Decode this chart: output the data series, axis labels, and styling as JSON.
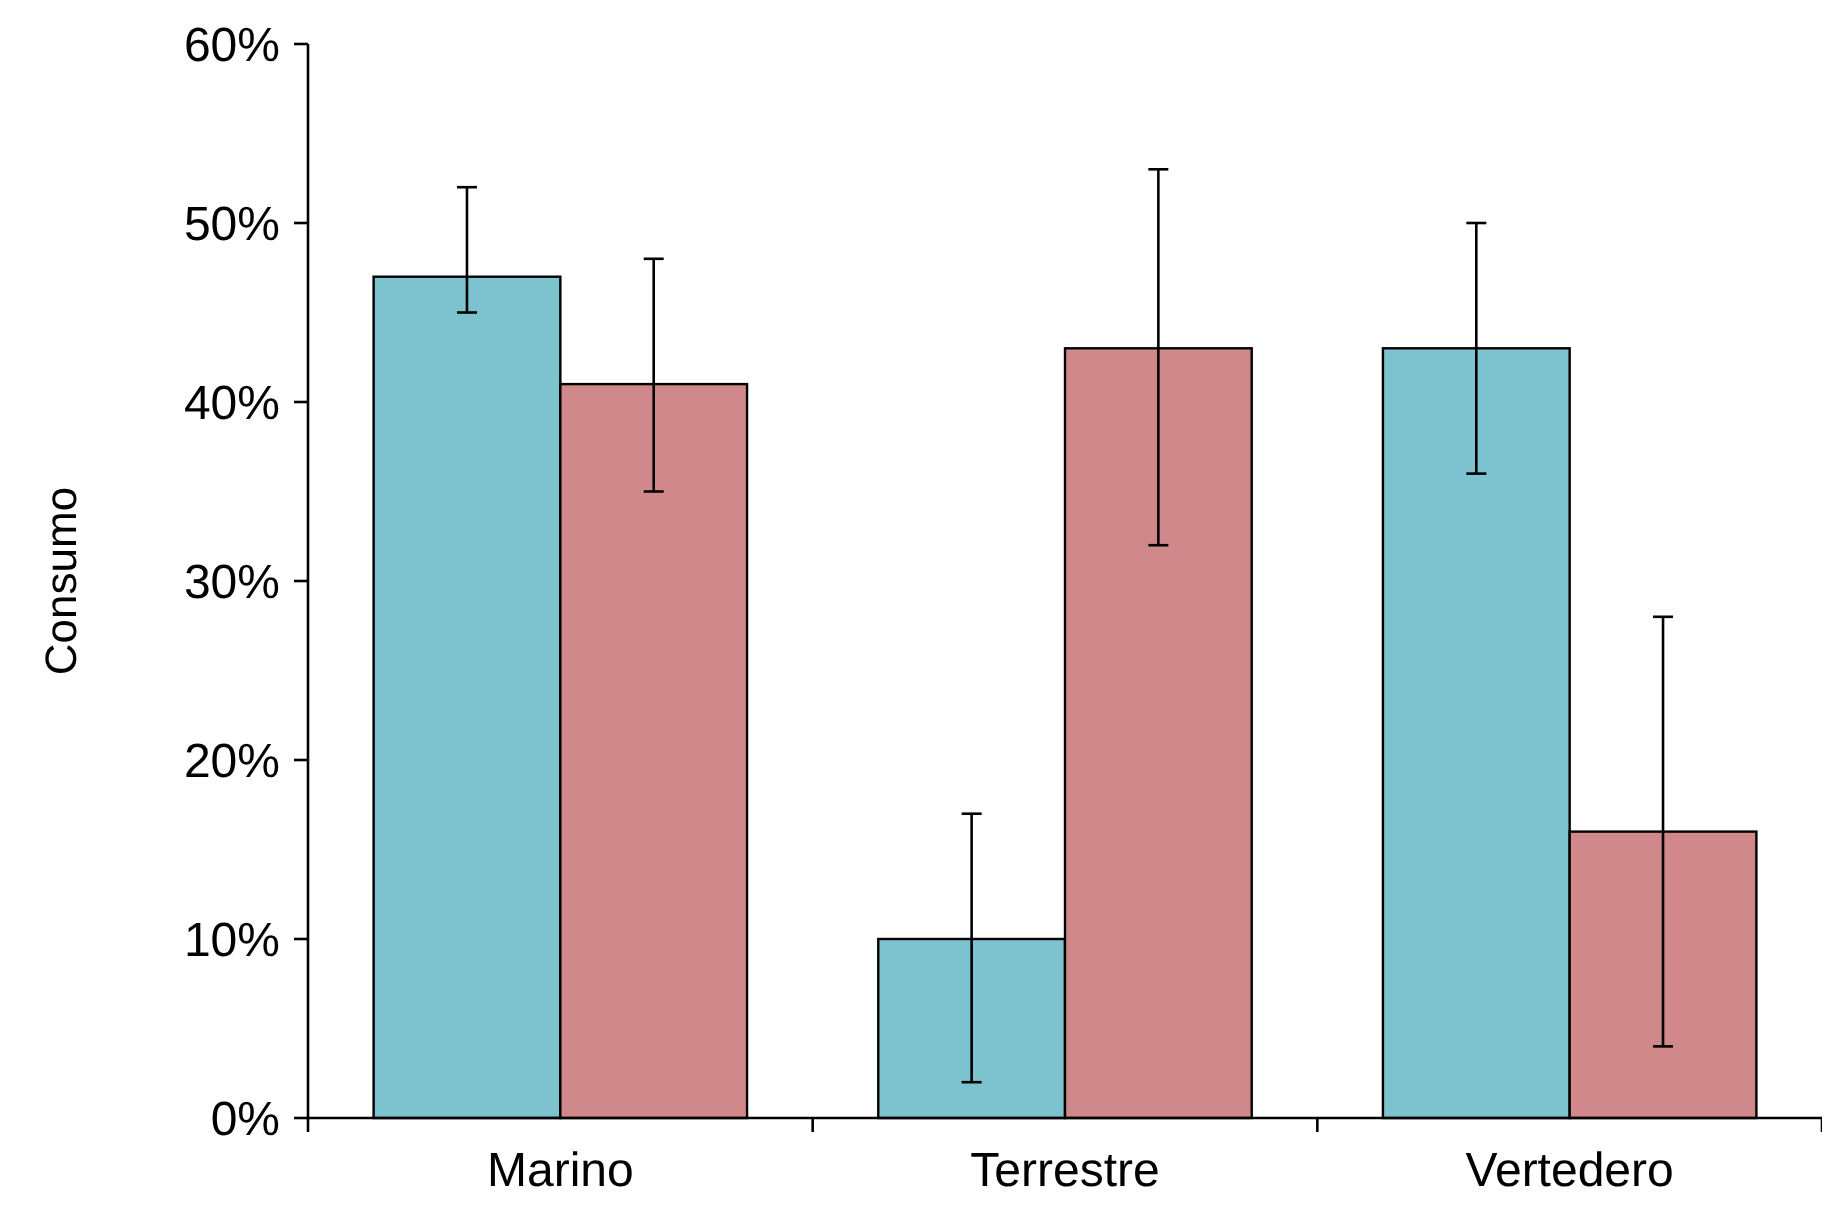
{
  "chart_data": {
    "type": "bar",
    "ylabel": "Consumo",
    "categories": [
      "Marino",
      "Terrestre",
      "Vertedero"
    ],
    "series": [
      {
        "color": "#7cc3cf",
        "values": [
          47,
          10,
          43
        ],
        "errors": [
          [
            45,
            52
          ],
          [
            2,
            17
          ],
          [
            36,
            50
          ]
        ]
      },
      {
        "color": "#d0888a",
        "values": [
          41,
          43,
          16
        ],
        "errors": [
          [
            35,
            48
          ],
          [
            32,
            53
          ],
          [
            4,
            28
          ]
        ]
      }
    ],
    "ylim": [
      0,
      60
    ],
    "yticks": [
      {
        "value": 0,
        "label": "0%"
      },
      {
        "value": 10,
        "label": "10%"
      },
      {
        "value": 20,
        "label": "20%"
      },
      {
        "value": 30,
        "label": "30%"
      },
      {
        "value": 40,
        "label": "40%"
      },
      {
        "value": 50,
        "label": "50%"
      },
      {
        "value": 60,
        "label": "60%"
      }
    ],
    "grid": false
  }
}
